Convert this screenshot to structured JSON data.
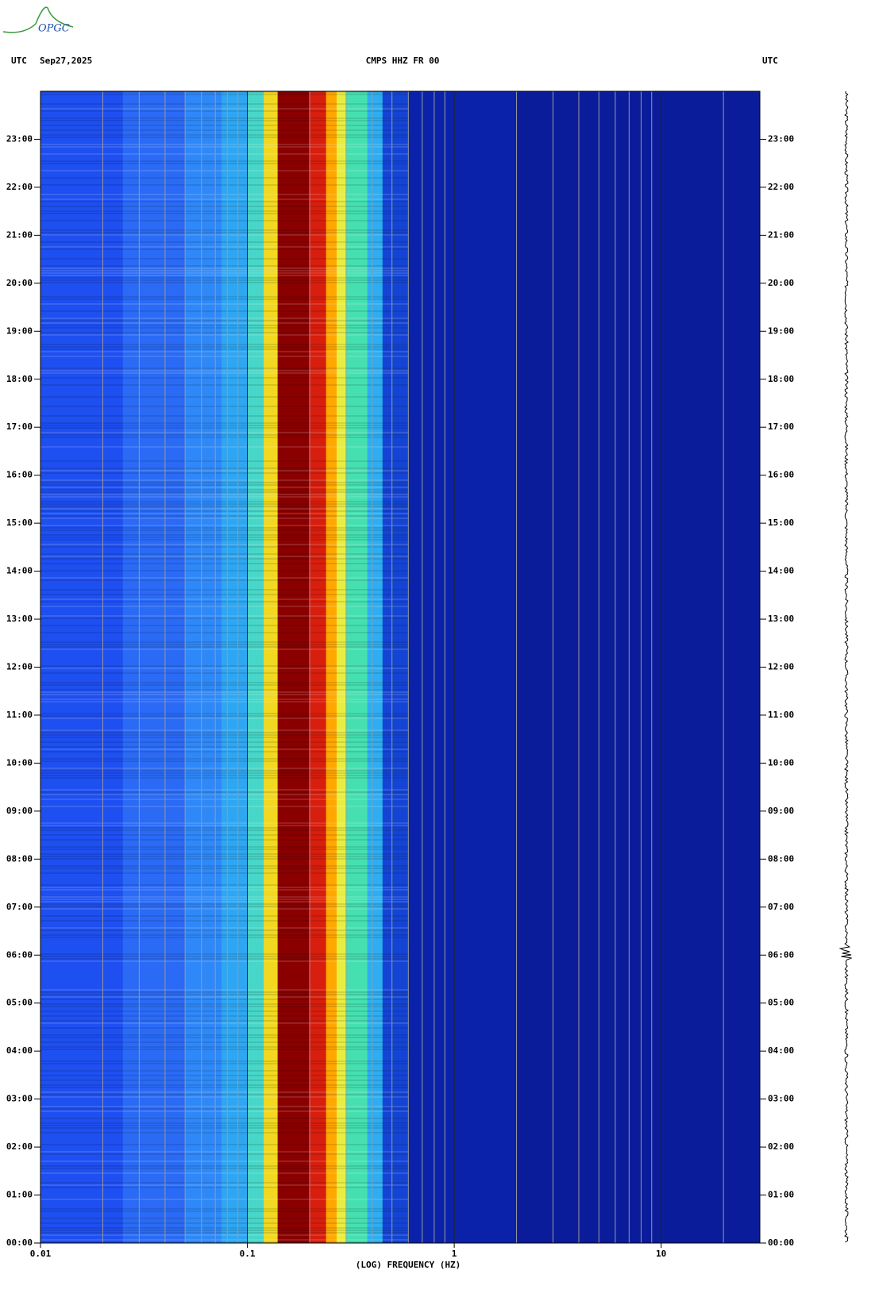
{
  "chart_data": {
    "type": "spectrogram",
    "logo": "OPGC",
    "header_left_zone": "UTC",
    "header_date": "Sep27,2025",
    "title": "CMPS HHZ FR 00",
    "header_right_zone": "UTC",
    "xlabel": "(LOG) FREQUENCY (HZ)",
    "xscale": "log",
    "xlim": [
      0.01,
      30
    ],
    "xticks": [
      0.01,
      0.1,
      1,
      10
    ],
    "xgrid": [
      0.02,
      0.03,
      0.04,
      0.05,
      0.06,
      0.07,
      0.08,
      0.09,
      0.2,
      0.3,
      0.4,
      0.5,
      0.6,
      0.7,
      0.8,
      0.9,
      2,
      3,
      4,
      5,
      6,
      7,
      8,
      9,
      20
    ],
    "ylim": [
      0,
      24
    ],
    "yticks": [
      {
        "value": 0,
        "label": "00:00"
      },
      {
        "value": 1,
        "label": "01:00"
      },
      {
        "value": 2,
        "label": "02:00"
      },
      {
        "value": 3,
        "label": "03:00"
      },
      {
        "value": 4,
        "label": "04:00"
      },
      {
        "value": 5,
        "label": "05:00"
      },
      {
        "value": 6,
        "label": "06:00"
      },
      {
        "value": 7,
        "label": "07:00"
      },
      {
        "value": 8,
        "label": "08:00"
      },
      {
        "value": 9,
        "label": "09:00"
      },
      {
        "value": 10,
        "label": "10:00"
      },
      {
        "value": 11,
        "label": "11:00"
      },
      {
        "value": 12,
        "label": "12:00"
      },
      {
        "value": 13,
        "label": "13:00"
      },
      {
        "value": 14,
        "label": "14:00"
      },
      {
        "value": 15,
        "label": "15:00"
      },
      {
        "value": 16,
        "label": "16:00"
      },
      {
        "value": 17,
        "label": "17:00"
      },
      {
        "value": 18,
        "label": "18:00"
      },
      {
        "value": 19,
        "label": "19:00"
      },
      {
        "value": 20,
        "label": "20:00"
      },
      {
        "value": 21,
        "label": "21:00"
      },
      {
        "value": 22,
        "label": "22:00"
      },
      {
        "value": 23,
        "label": "23:00"
      }
    ],
    "bands": [
      {
        "from": 0.01,
        "to": 0.025,
        "color": "#1e4ff0"
      },
      {
        "from": 0.025,
        "to": 0.05,
        "color": "#2a6af5"
      },
      {
        "from": 0.05,
        "to": 0.075,
        "color": "#2f88f8"
      },
      {
        "from": 0.075,
        "to": 0.1,
        "color": "#2fa6f2"
      },
      {
        "from": 0.1,
        "to": 0.12,
        "color": "#48d6c8"
      },
      {
        "from": 0.12,
        "to": 0.14,
        "color": "#f2d820"
      },
      {
        "from": 0.14,
        "to": 0.2,
        "color": "#8a0000"
      },
      {
        "from": 0.2,
        "to": 0.24,
        "color": "#d81e0e"
      },
      {
        "from": 0.24,
        "to": 0.27,
        "color": "#ffa800"
      },
      {
        "from": 0.27,
        "to": 0.3,
        "color": "#e8ee40"
      },
      {
        "from": 0.3,
        "to": 0.38,
        "color": "#46e0b0"
      },
      {
        "from": 0.38,
        "to": 0.45,
        "color": "#2eaef0"
      },
      {
        "from": 0.45,
        "to": 0.6,
        "color": "#1444d4"
      },
      {
        "from": 0.6,
        "to": 2,
        "color": "#0a22aa"
      },
      {
        "from": 2,
        "to": 30,
        "color": "#0b1c9a"
      }
    ]
  }
}
